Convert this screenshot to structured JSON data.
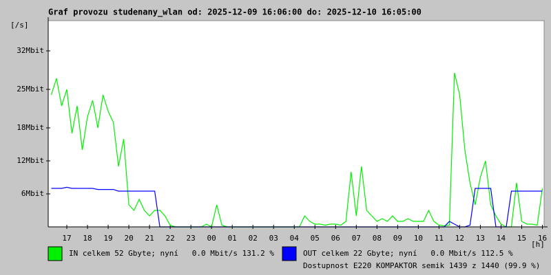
{
  "chart_data": {
    "type": "line",
    "title": "Graf provozu studenany_wlan od: 2025-12-09 16:06:00 do: 2025-12-10 16:05:00",
    "y_label": "[/s]",
    "x_label": "[h]",
    "annotation": "Dostupnost E220 KOMPAKTOR semik 1439 z 1440 (99.9 %)",
    "annotation_color": "#e00000",
    "x": [
      0.25,
      0.5,
      0.75,
      1,
      1.25,
      1.5,
      1.75,
      2,
      2.25,
      2.5,
      2.75,
      3,
      3.25,
      3.5,
      3.75,
      4,
      4.25,
      4.5,
      4.75,
      5,
      5.25,
      5.5,
      5.75,
      6,
      6.25,
      6.5,
      6.75,
      7,
      7.25,
      7.5,
      7.75,
      8,
      8.25,
      8.5,
      8.75,
      9,
      9.25,
      9.5,
      9.75,
      10,
      10.25,
      10.5,
      10.75,
      11,
      11.25,
      11.5,
      11.75,
      12,
      12.25,
      12.5,
      12.75,
      13,
      13.25,
      13.5,
      13.75,
      14,
      14.25,
      14.5,
      14.75,
      15,
      15.25,
      15.5,
      15.75,
      16,
      16.25,
      16.5,
      16.75,
      17,
      17.25,
      17.5,
      17.75,
      18,
      18.25,
      18.5,
      18.75,
      19,
      19.25,
      19.5,
      19.75,
      20,
      20.25,
      20.5,
      20.75,
      21,
      21.25,
      21.5,
      21.75,
      22,
      22.25,
      22.5,
      22.75,
      23,
      23.25,
      23.5,
      23.75,
      24
    ],
    "series": [
      {
        "name": "IN celkem 52 Gbyte; nyní   0.0 Mbit/s 131.2 %",
        "color": "#00f000",
        "values": [
          24,
          27,
          22,
          25,
          17,
          22,
          14,
          20,
          23,
          18,
          24,
          21,
          19,
          11,
          16,
          4,
          3,
          5,
          3,
          2,
          3,
          3,
          2,
          0.3,
          0,
          0,
          0,
          0,
          0,
          0,
          0.5,
          0,
          4,
          0.3,
          0,
          0,
          0,
          0,
          0,
          0,
          0,
          0,
          0,
          0,
          0,
          0,
          0,
          0,
          0,
          2,
          1,
          0.5,
          0.5,
          0.3,
          0.5,
          0.5,
          0.3,
          1,
          10,
          2,
          11,
          3,
          2,
          1,
          1.5,
          1,
          2,
          1,
          1,
          1.5,
          1,
          1,
          1,
          3,
          1,
          0.3,
          0.2,
          0.3,
          28,
          24,
          14,
          8,
          4,
          9,
          12,
          4,
          2,
          0.5,
          0,
          0,
          8,
          1,
          0.5,
          0.5,
          0.3,
          7
        ]
      },
      {
        "name": "OUT celkem 22 Gbyte; nyní   0.0 Mbit/s 112.5 %",
        "color": "#0000ff",
        "values": [
          7,
          7,
          7,
          7.2,
          7,
          7,
          7,
          7,
          7,
          6.8,
          6.8,
          6.8,
          6.8,
          6.5,
          6.5,
          6.5,
          6.5,
          6.5,
          6.5,
          6.5,
          6.5,
          0,
          0,
          0,
          0,
          0,
          0,
          0,
          0,
          0,
          0,
          0,
          0,
          0,
          0,
          0,
          0,
          0,
          0,
          0,
          0,
          0,
          0,
          0,
          0,
          0,
          0,
          0,
          0,
          0,
          0,
          0,
          0,
          0,
          0,
          0,
          0,
          0,
          0,
          0,
          0,
          0,
          0,
          0,
          0,
          0,
          0,
          0,
          0,
          0,
          0,
          0,
          0,
          0,
          0,
          0,
          0,
          1,
          0.5,
          0,
          0,
          0.3,
          7,
          7,
          7,
          7,
          0,
          0,
          0,
          6.5,
          6.5,
          6.5,
          6.5,
          6.5,
          6.5,
          6.5
        ]
      }
    ],
    "xlim": [
      0.1,
      24.083
    ],
    "xticks": [
      {
        "value": 1,
        "label": "17"
      },
      {
        "value": 2,
        "label": "18"
      },
      {
        "value": 3,
        "label": "19"
      },
      {
        "value": 4,
        "label": "20"
      },
      {
        "value": 5,
        "label": "21"
      },
      {
        "value": 6,
        "label": "22"
      },
      {
        "value": 7,
        "label": "23"
      },
      {
        "value": 8,
        "label": "00"
      },
      {
        "value": 9,
        "label": "01"
      },
      {
        "value": 10,
        "label": "02"
      },
      {
        "value": 11,
        "label": "03"
      },
      {
        "value": 12,
        "label": "04"
      },
      {
        "value": 13,
        "label": "05"
      },
      {
        "value": 14,
        "label": "06"
      },
      {
        "value": 15,
        "label": "07"
      },
      {
        "value": 16,
        "label": "08"
      },
      {
        "value": 17,
        "label": "09"
      },
      {
        "value": 18,
        "label": "10"
      },
      {
        "value": 19,
        "label": "11"
      },
      {
        "value": 20,
        "label": "12"
      },
      {
        "value": 21,
        "label": "13"
      },
      {
        "value": 22,
        "label": "14"
      },
      {
        "value": 23,
        "label": "15"
      },
      {
        "value": 24,
        "label": "16"
      }
    ],
    "ylim": [
      0,
      37.5
    ],
    "yticks": [
      {
        "value": 6,
        "label": "6Mbit"
      },
      {
        "value": 12,
        "label": "12Mbit"
      },
      {
        "value": 18,
        "label": "18Mbit"
      },
      {
        "value": 25,
        "label": "25Mbit"
      },
      {
        "value": 32,
        "label": "32Mbit"
      }
    ]
  }
}
